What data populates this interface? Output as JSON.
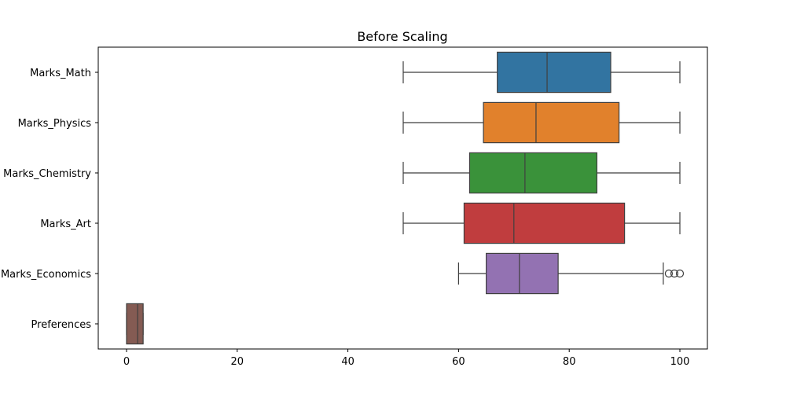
{
  "chart_data": {
    "type": "boxplot",
    "orientation": "horizontal",
    "title": "Before Scaling",
    "xlabel": "",
    "ylabel": "",
    "xlim": [
      -5,
      105
    ],
    "xticks": [
      0,
      20,
      40,
      60,
      80,
      100
    ],
    "xtick_labels": [
      "0",
      "20",
      "40",
      "60",
      "80",
      "100"
    ],
    "grid": false,
    "legend": "none",
    "series": [
      {
        "name": "Marks_Math",
        "color": "#3274a1",
        "whisker_low": 50,
        "q1": 67,
        "median": 76,
        "q3": 87.5,
        "whisker_high": 100,
        "outliers": []
      },
      {
        "name": "Marks_Physics",
        "color": "#e1812c",
        "whisker_low": 50,
        "q1": 64.5,
        "median": 74,
        "q3": 89,
        "whisker_high": 100,
        "outliers": []
      },
      {
        "name": "Marks_Chemistry",
        "color": "#3a923a",
        "whisker_low": 50,
        "q1": 62,
        "median": 72,
        "q3": 85,
        "whisker_high": 100,
        "outliers": []
      },
      {
        "name": "Marks_Art",
        "color": "#c03d3e",
        "whisker_low": 50,
        "q1": 61,
        "median": 70,
        "q3": 90,
        "whisker_high": 100,
        "outliers": []
      },
      {
        "name": "Marks_Economics",
        "color": "#9372b2",
        "whisker_low": 60,
        "q1": 65,
        "median": 71,
        "q3": 78,
        "whisker_high": 97,
        "outliers": [
          98,
          99,
          100
        ]
      },
      {
        "name": "Preferences",
        "color": "#845b53",
        "whisker_low": 0,
        "q1": 0,
        "median": 2,
        "q3": 3,
        "whisker_high": 3,
        "outliers": []
      }
    ]
  }
}
